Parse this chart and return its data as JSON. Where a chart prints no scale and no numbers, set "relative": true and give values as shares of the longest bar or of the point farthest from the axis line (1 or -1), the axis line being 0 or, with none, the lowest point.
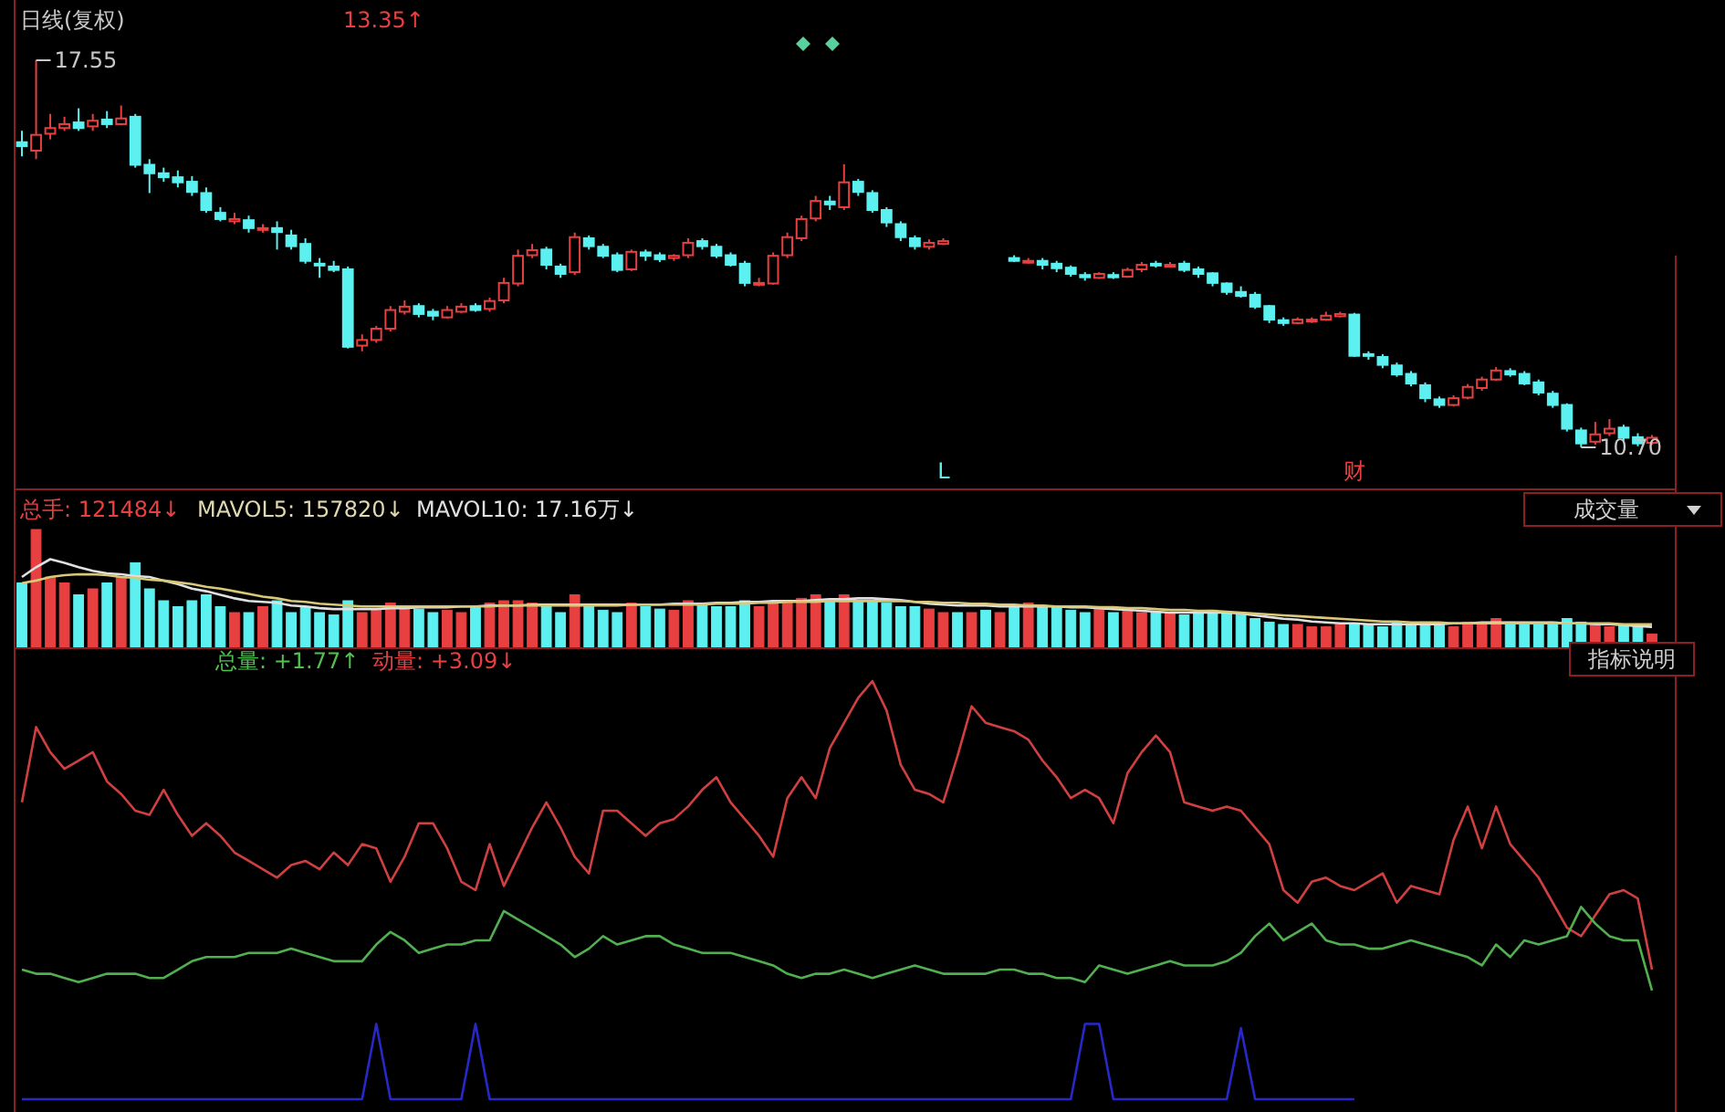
{
  "chart_data": [
    {
      "type": "candlestick",
      "categories": [
        null,
        null,
        null,
        null,
        null,
        null,
        null,
        null,
        null,
        null,
        null,
        null,
        null,
        null,
        null,
        null,
        null,
        null,
        null,
        null,
        null,
        null,
        null,
        null,
        null,
        null,
        null,
        null,
        null,
        null,
        null,
        null,
        null,
        null,
        null,
        null,
        null,
        null,
        null,
        null,
        null,
        null,
        null,
        null,
        null,
        null,
        null,
        null,
        null,
        null,
        null,
        null,
        null,
        null,
        null,
        null,
        null,
        null,
        null,
        null,
        null,
        null,
        null,
        null,
        null,
        null,
        null,
        null,
        null,
        null,
        null,
        null,
        null,
        null,
        null,
        null,
        null,
        null,
        null,
        null,
        null,
        null,
        null,
        null,
        null,
        null,
        null,
        null,
        null,
        null,
        null,
        null,
        null,
        null,
        null,
        null,
        null,
        null,
        null,
        null,
        null,
        null,
        null,
        null,
        null,
        null,
        null,
        null,
        null,
        null,
        null,
        null,
        null,
        null,
        null,
        null
      ],
      "ohlc": [
        [
          16.1,
          16.3,
          15.85,
          16.03
        ],
        [
          15.95,
          17.55,
          15.8,
          16.23
        ],
        [
          16.25,
          16.6,
          16.15,
          16.35
        ],
        [
          16.35,
          16.55,
          16.3,
          16.42
        ],
        [
          16.45,
          16.7,
          16.3,
          16.35
        ],
        [
          16.38,
          16.6,
          16.3,
          16.48
        ],
        [
          16.5,
          16.65,
          16.35,
          16.42
        ],
        [
          16.42,
          16.75,
          16.4,
          16.52
        ],
        [
          16.55,
          16.6,
          15.65,
          15.7
        ],
        [
          15.7,
          15.8,
          15.2,
          15.55
        ],
        [
          15.55,
          15.65,
          15.4,
          15.48
        ],
        [
          15.48,
          15.6,
          15.3,
          15.39
        ],
        [
          15.4,
          15.5,
          15.15,
          15.22
        ],
        [
          15.2,
          15.3,
          14.85,
          14.9
        ],
        [
          14.85,
          14.95,
          14.7,
          14.74
        ],
        [
          14.7,
          14.85,
          14.65,
          14.74
        ],
        [
          14.72,
          14.8,
          14.5,
          14.58
        ],
        [
          14.55,
          14.65,
          14.5,
          14.58
        ],
        [
          14.58,
          14.7,
          14.2,
          14.51
        ],
        [
          14.45,
          14.55,
          14.2,
          14.26
        ],
        [
          14.3,
          14.4,
          13.95,
          14.0
        ],
        [
          13.95,
          14.05,
          13.7,
          13.93
        ],
        [
          13.9,
          14.0,
          13.8,
          13.84
        ],
        [
          13.85,
          13.9,
          12.45,
          12.48
        ],
        [
          12.5,
          12.7,
          12.4,
          12.6
        ],
        [
          12.6,
          12.85,
          12.55,
          12.8
        ],
        [
          12.8,
          13.2,
          12.75,
          13.13
        ],
        [
          13.1,
          13.3,
          13.05,
          13.19
        ],
        [
          13.2,
          13.25,
          13.0,
          13.06
        ],
        [
          13.1,
          13.15,
          12.95,
          13.03
        ],
        [
          13.0,
          13.2,
          12.98,
          13.13
        ],
        [
          13.1,
          13.25,
          13.08,
          13.19
        ],
        [
          13.2,
          13.25,
          13.1,
          13.13
        ],
        [
          13.15,
          13.35,
          13.1,
          13.29
        ],
        [
          13.3,
          13.7,
          13.25,
          13.61
        ],
        [
          13.6,
          14.2,
          13.55,
          14.09
        ],
        [
          14.1,
          14.3,
          14.05,
          14.19
        ],
        [
          14.2,
          14.25,
          13.85,
          13.93
        ],
        [
          13.9,
          13.95,
          13.7,
          13.77
        ],
        [
          13.8,
          14.5,
          13.75,
          14.42
        ],
        [
          14.4,
          14.45,
          14.2,
          14.26
        ],
        [
          14.25,
          14.3,
          14.05,
          14.09
        ],
        [
          14.1,
          14.15,
          13.8,
          13.84
        ],
        [
          13.85,
          14.2,
          13.82,
          14.16
        ],
        [
          14.15,
          14.2,
          14.0,
          14.09
        ],
        [
          14.1,
          14.15,
          13.98,
          14.03
        ],
        [
          14.05,
          14.12,
          14.0,
          14.09
        ],
        [
          14.1,
          14.4,
          14.05,
          14.32
        ],
        [
          14.35,
          14.4,
          14.2,
          14.26
        ],
        [
          14.25,
          14.3,
          14.05,
          14.09
        ],
        [
          14.1,
          14.15,
          13.9,
          13.93
        ],
        [
          13.95,
          14.0,
          13.55,
          13.61
        ],
        [
          13.58,
          13.7,
          13.55,
          13.61
        ],
        [
          13.6,
          14.15,
          13.58,
          14.09
        ],
        [
          14.1,
          14.5,
          14.05,
          14.42
        ],
        [
          14.4,
          14.8,
          14.35,
          14.74
        ],
        [
          14.75,
          15.15,
          14.7,
          15.06
        ],
        [
          15.05,
          15.15,
          14.9,
          15.0
        ],
        [
          14.95,
          15.71,
          14.9,
          15.39
        ],
        [
          15.4,
          15.45,
          15.15,
          15.22
        ],
        [
          15.2,
          15.25,
          14.85,
          14.9
        ],
        [
          14.9,
          14.95,
          14.6,
          14.68
        ],
        [
          14.65,
          14.7,
          14.35,
          14.42
        ],
        [
          14.4,
          14.45,
          14.2,
          14.26
        ],
        [
          14.25,
          14.38,
          14.2,
          14.32
        ],
        [
          14.3,
          14.4,
          14.28,
          14.35
        ],
        null,
        null,
        null,
        null,
        [
          14.05,
          14.1,
          13.98,
          14.0
        ],
        [
          14.0,
          14.05,
          13.95,
          14.0
        ],
        [
          14.0,
          14.05,
          13.85,
          13.93
        ],
        [
          13.95,
          14.0,
          13.8,
          13.87
        ],
        [
          13.88,
          13.92,
          13.72,
          13.77
        ],
        [
          13.75,
          13.8,
          13.65,
          13.71
        ],
        [
          13.7,
          13.8,
          13.68,
          13.77
        ],
        [
          13.75,
          13.8,
          13.68,
          13.71
        ],
        [
          13.72,
          13.88,
          13.7,
          13.84
        ],
        [
          13.85,
          13.98,
          13.8,
          13.93
        ],
        [
          13.95,
          14.0,
          13.88,
          13.93
        ],
        [
          13.9,
          13.98,
          13.88,
          13.93
        ],
        [
          13.95,
          14.0,
          13.8,
          13.84
        ],
        [
          13.85,
          13.9,
          13.7,
          13.77
        ],
        [
          13.78,
          13.8,
          13.55,
          13.61
        ],
        [
          13.6,
          13.62,
          13.4,
          13.45
        ],
        [
          13.45,
          13.55,
          13.35,
          13.38
        ],
        [
          13.4,
          13.45,
          13.15,
          13.19
        ],
        [
          13.2,
          13.22,
          12.9,
          12.96
        ],
        [
          12.95,
          13.0,
          12.85,
          12.9
        ],
        [
          12.9,
          13.0,
          12.88,
          12.96
        ],
        [
          12.95,
          13.0,
          12.9,
          12.96
        ],
        [
          12.96,
          13.1,
          12.94,
          13.03
        ],
        [
          13.02,
          13.1,
          13.0,
          13.06
        ],
        [
          13.05,
          13.08,
          12.3,
          12.32
        ],
        [
          12.35,
          12.4,
          12.25,
          12.32
        ],
        [
          12.3,
          12.35,
          12.1,
          12.16
        ],
        [
          12.15,
          12.2,
          11.95,
          11.99
        ],
        [
          12.0,
          12.05,
          11.78,
          11.83
        ],
        [
          11.8,
          11.85,
          11.5,
          11.57
        ],
        [
          11.55,
          11.6,
          11.4,
          11.45
        ],
        [
          11.45,
          11.62,
          11.43,
          11.57
        ],
        [
          11.58,
          11.82,
          11.55,
          11.77
        ],
        [
          11.75,
          11.95,
          11.7,
          11.9
        ],
        [
          11.9,
          12.12,
          11.88,
          12.06
        ],
        [
          12.05,
          12.1,
          11.95,
          11.99
        ],
        [
          12.0,
          12.05,
          11.8,
          11.83
        ],
        [
          11.85,
          11.9,
          11.62,
          11.67
        ],
        [
          11.65,
          11.7,
          11.4,
          11.45
        ],
        [
          11.45,
          11.48,
          10.98,
          11.03
        ],
        [
          11.0,
          11.05,
          10.7,
          10.77
        ],
        [
          10.8,
          11.15,
          10.75,
          10.93
        ],
        [
          10.95,
          11.2,
          10.9,
          11.03
        ],
        [
          11.05,
          11.1,
          10.82,
          10.87
        ],
        [
          10.88,
          10.95,
          10.72,
          10.77
        ],
        [
          10.78,
          10.92,
          10.75,
          10.87
        ]
      ],
      "annotations": [
        "日线(复权)",
        "13.35↑",
        "17.55",
        "10.70",
        "L",
        "财"
      ]
    },
    {
      "type": "bar",
      "relative": true,
      "categories": [
        null,
        null,
        null,
        null,
        null,
        null,
        null,
        null,
        null,
        null,
        null,
        null,
        null,
        null,
        null,
        null,
        null,
        null,
        null,
        null,
        null,
        null,
        null,
        null,
        null,
        null,
        null,
        null,
        null,
        null,
        null,
        null,
        null,
        null,
        null,
        null,
        null,
        null,
        null,
        null,
        null,
        null,
        null,
        null,
        null,
        null,
        null,
        null,
        null,
        null,
        null,
        null,
        null,
        null,
        null,
        null,
        null,
        null,
        null,
        null,
        null,
        null,
        null,
        null,
        null,
        null,
        null,
        null,
        null,
        null,
        null,
        null,
        null,
        null,
        null,
        null,
        null,
        null,
        null,
        null,
        null,
        null,
        null,
        null,
        null,
        null,
        null,
        null,
        null,
        null,
        null,
        null,
        null,
        null,
        null,
        null,
        null,
        null,
        null,
        null,
        null,
        null,
        null,
        null,
        null,
        null,
        null,
        null,
        null,
        null,
        null,
        null,
        null,
        null,
        null,
        null
      ],
      "values": [
        0.55,
        1,
        0.6,
        0.55,
        0.45,
        0.5,
        0.55,
        0.6,
        0.72,
        0.5,
        0.4,
        0.35,
        0.4,
        0.45,
        0.35,
        0.3,
        0.3,
        0.35,
        0.4,
        0.3,
        0.35,
        0.3,
        0.28,
        0.4,
        0.3,
        0.32,
        0.38,
        0.35,
        0.33,
        0.3,
        0.32,
        0.3,
        0.35,
        0.38,
        0.4,
        0.4,
        0.38,
        0.35,
        0.3,
        0.45,
        0.35,
        0.32,
        0.3,
        0.38,
        0.35,
        0.33,
        0.32,
        0.4,
        0.38,
        0.35,
        0.35,
        0.4,
        0.35,
        0.38,
        0.4,
        0.42,
        0.45,
        0.4,
        0.45,
        0.4,
        0.4,
        0.38,
        0.35,
        0.35,
        0.33,
        0.3,
        0.3,
        0.3,
        0.32,
        0.3,
        0.35,
        0.38,
        0.36,
        0.35,
        0.32,
        0.3,
        0.33,
        0.3,
        0.32,
        0.3,
        0.3,
        0.3,
        0.28,
        0.3,
        0.32,
        0.3,
        0.28,
        0.25,
        0.22,
        0.2,
        0.2,
        0.18,
        0.18,
        0.2,
        0.2,
        0.2,
        0.18,
        0.22,
        0.2,
        0.22,
        0.2,
        0.18,
        0.22,
        0.2,
        0.25,
        0.22,
        0.2,
        0.2,
        0.22,
        0.25,
        0.22,
        0.2,
        0.18,
        0.2,
        0.18,
        0.12
      ],
      "colors": [
        "#5cf0f0",
        "#e84040",
        "#e84040",
        "#e84040",
        "#5cf0f0",
        "#e84040",
        "#5cf0f0",
        "#e84040",
        "#5cf0f0",
        "#5cf0f0",
        "#5cf0f0",
        "#5cf0f0",
        "#5cf0f0",
        "#5cf0f0",
        "#5cf0f0",
        "#e84040",
        "#5cf0f0",
        "#e84040",
        "#5cf0f0",
        "#5cf0f0",
        "#5cf0f0",
        "#5cf0f0",
        "#5cf0f0",
        "#5cf0f0",
        "#e84040",
        "#e84040",
        "#e84040",
        "#e84040",
        "#5cf0f0",
        "#5cf0f0",
        "#e84040",
        "#e84040",
        "#5cf0f0",
        "#e84040",
        "#e84040",
        "#e84040",
        "#e84040",
        "#5cf0f0",
        "#5cf0f0",
        "#e84040",
        "#5cf0f0",
        "#5cf0f0",
        "#5cf0f0",
        "#e84040",
        "#5cf0f0",
        "#5cf0f0",
        "#e84040",
        "#e84040",
        "#5cf0f0",
        "#5cf0f0",
        "#5cf0f0",
        "#5cf0f0",
        "#e84040",
        "#e84040",
        "#e84040",
        "#e84040",
        "#e84040",
        "#5cf0f0",
        "#e84040",
        "#5cf0f0",
        "#5cf0f0",
        "#5cf0f0",
        "#5cf0f0",
        "#5cf0f0",
        "#e84040",
        "#e84040",
        "#5cf0f0",
        "#e84040",
        "#5cf0f0",
        "#e84040",
        "#5cf0f0",
        "#e84040",
        "#5cf0f0",
        "#5cf0f0",
        "#5cf0f0",
        "#5cf0f0",
        "#e84040",
        "#5cf0f0",
        "#e84040",
        "#e84040",
        "#5cf0f0",
        "#e84040",
        "#5cf0f0",
        "#5cf0f0",
        "#5cf0f0",
        "#5cf0f0",
        "#5cf0f0",
        "#5cf0f0",
        "#5cf0f0",
        "#5cf0f0",
        "#e84040",
        "#e84040",
        "#e84040",
        "#e84040",
        "#5cf0f0",
        "#5cf0f0",
        "#5cf0f0",
        "#5cf0f0",
        "#5cf0f0",
        "#5cf0f0",
        "#5cf0f0",
        "#e84040",
        "#e84040",
        "#e84040",
        "#e84040",
        "#5cf0f0",
        "#5cf0f0",
        "#5cf0f0",
        "#5cf0f0",
        "#5cf0f0",
        "#5cf0f0",
        "#e84040",
        "#e84040",
        "#5cf0f0",
        "#5cf0f0",
        "#e84040"
      ],
      "annotations": [
        "总手: 121484↓",
        "MAVOL5: 157820↓",
        "MAVOL10: 17.16万↓",
        "成交量"
      ]
    },
    {
      "type": "line",
      "relative": true,
      "categories": [
        null,
        null,
        null,
        null,
        null,
        null,
        null,
        null,
        null,
        null,
        null,
        null,
        null,
        null,
        null,
        null,
        null,
        null,
        null,
        null,
        null,
        null,
        null,
        null,
        null,
        null,
        null,
        null,
        null,
        null,
        null,
        null,
        null,
        null,
        null,
        null,
        null,
        null,
        null,
        null,
        null,
        null,
        null,
        null,
        null,
        null,
        null,
        null,
        null,
        null,
        null,
        null,
        null,
        null,
        null,
        null,
        null,
        null,
        null,
        null,
        null,
        null,
        null,
        null,
        null,
        null,
        null,
        null,
        null,
        null,
        null,
        null,
        null,
        null,
        null,
        null,
        null,
        null,
        null,
        null,
        null,
        null,
        null,
        null,
        null,
        null,
        null,
        null,
        null,
        null,
        null,
        null,
        null,
        null,
        null,
        null,
        null,
        null,
        null,
        null,
        null,
        null,
        null,
        null,
        null,
        null,
        null,
        null,
        null,
        null,
        null,
        null,
        null,
        null,
        null,
        null
      ],
      "series": [
        {
          "color": "#e0e0e0",
          "values": [
            0.8,
            0.91,
            1,
            0.96,
            0.91,
            0.87,
            0.84,
            0.83,
            0.81,
            0.8,
            0.76,
            0.72,
            0.67,
            0.64,
            0.6,
            0.56,
            0.53,
            0.52,
            0.51,
            0.48,
            0.47,
            0.45,
            0.44,
            0.44,
            0.44,
            0.44,
            0.45,
            0.45,
            0.46,
            0.46,
            0.46,
            0.47,
            0.47,
            0.48,
            0.48,
            0.48,
            0.49,
            0.49,
            0.49,
            0.49,
            0.49,
            0.49,
            0.49,
            0.49,
            0.49,
            0.49,
            0.5,
            0.5,
            0.5,
            0.51,
            0.51,
            0.52,
            0.52,
            0.53,
            0.53,
            0.53,
            0.54,
            0.55,
            0.55,
            0.56,
            0.56,
            0.55,
            0.54,
            0.52,
            0.5,
            0.49,
            0.48,
            0.48,
            0.48,
            0.47,
            0.47,
            0.47,
            0.47,
            0.47,
            0.46,
            0.46,
            0.45,
            0.44,
            0.43,
            0.42,
            0.41,
            0.4,
            0.4,
            0.4,
            0.4,
            0.4,
            0.39,
            0.37,
            0.35,
            0.33,
            0.32,
            0.3,
            0.29,
            0.28,
            0.28,
            0.27,
            0.27,
            0.27,
            0.27,
            0.27,
            0.27,
            0.28,
            0.28,
            0.29,
            0.29,
            0.29,
            0.29,
            0.29,
            0.29,
            0.28,
            0.28,
            0.27,
            0.27,
            0.26,
            0.25,
            0.24
          ]
        },
        {
          "color": "#d8c878",
          "values": [
            0.73,
            0.76,
            0.8,
            0.82,
            0.83,
            0.83,
            0.82,
            0.8,
            0.79,
            0.77,
            0.76,
            0.74,
            0.72,
            0.69,
            0.67,
            0.64,
            0.61,
            0.58,
            0.56,
            0.53,
            0.52,
            0.5,
            0.49,
            0.48,
            0.47,
            0.47,
            0.47,
            0.47,
            0.47,
            0.47,
            0.47,
            0.47,
            0.47,
            0.47,
            0.48,
            0.48,
            0.48,
            0.48,
            0.48,
            0.48,
            0.48,
            0.48,
            0.48,
            0.49,
            0.49,
            0.49,
            0.49,
            0.49,
            0.49,
            0.5,
            0.5,
            0.5,
            0.51,
            0.51,
            0.52,
            0.52,
            0.52,
            0.53,
            0.53,
            0.53,
            0.53,
            0.53,
            0.53,
            0.52,
            0.52,
            0.51,
            0.51,
            0.5,
            0.5,
            0.49,
            0.49,
            0.48,
            0.48,
            0.47,
            0.47,
            0.47,
            0.46,
            0.46,
            0.45,
            0.45,
            0.44,
            0.43,
            0.43,
            0.42,
            0.42,
            0.41,
            0.4,
            0.39,
            0.38,
            0.37,
            0.36,
            0.35,
            0.34,
            0.33,
            0.32,
            0.31,
            0.3,
            0.3,
            0.29,
            0.29,
            0.29,
            0.28,
            0.28,
            0.28,
            0.28,
            0.28,
            0.28,
            0.28,
            0.28,
            0.28,
            0.28,
            0.28,
            0.28,
            0.27,
            0.27,
            0.27
          ]
        }
      ]
    },
    {
      "type": "line",
      "relative": true,
      "categories": [
        null,
        null,
        null,
        null,
        null,
        null,
        null,
        null,
        null,
        null,
        null,
        null,
        null,
        null,
        null,
        null,
        null,
        null,
        null,
        null,
        null,
        null,
        null,
        null,
        null,
        null,
        null,
        null,
        null,
        null,
        null,
        null,
        null,
        null,
        null,
        null,
        null,
        null,
        null,
        null,
        null,
        null,
        null,
        null,
        null,
        null,
        null,
        null,
        null,
        null,
        null,
        null,
        null,
        null,
        null,
        null,
        null,
        null,
        null,
        null,
        null,
        null,
        null,
        null,
        null,
        null,
        null,
        null,
        null,
        null,
        null,
        null,
        null,
        null,
        null,
        null,
        null,
        null,
        null,
        null,
        null,
        null,
        null,
        null,
        null,
        null,
        null,
        null,
        null,
        null,
        null,
        null,
        null,
        null,
        null,
        null,
        null,
        null,
        null,
        null,
        null,
        null,
        null,
        null,
        null,
        null,
        null,
        null,
        null,
        null,
        null,
        null,
        null,
        null,
        null,
        null
      ],
      "series": [
        {
          "color": "#d04040",
          "values": [
            0.71,
            0.89,
            0.83,
            0.79,
            0.81,
            0.83,
            0.76,
            0.73,
            0.69,
            0.68,
            0.74,
            0.68,
            0.63,
            0.66,
            0.63,
            0.59,
            0.57,
            0.55,
            0.53,
            0.56,
            0.57,
            0.55,
            0.59,
            0.56,
            0.61,
            0.6,
            0.52,
            0.58,
            0.66,
            0.66,
            0.6,
            0.52,
            0.5,
            0.61,
            0.51,
            0.58,
            0.65,
            0.71,
            0.65,
            0.58,
            0.54,
            0.69,
            0.69,
            0.66,
            0.63,
            0.66,
            0.67,
            0.7,
            0.74,
            0.77,
            0.71,
            0.67,
            0.63,
            0.58,
            0.72,
            0.77,
            0.72,
            0.84,
            0.9,
            0.96,
            1,
            0.93,
            0.8,
            0.74,
            0.73,
            0.71,
            0.82,
            0.94,
            0.9,
            0.89,
            0.88,
            0.86,
            0.81,
            0.77,
            0.72,
            0.74,
            0.72,
            0.66,
            0.78,
            0.83,
            0.87,
            0.83,
            0.71,
            0.7,
            0.69,
            0.7,
            0.69,
            0.65,
            0.61,
            0.5,
            0.47,
            0.52,
            0.53,
            0.51,
            0.5,
            0.52,
            0.54,
            0.47,
            0.51,
            0.5,
            0.49,
            0.62,
            0.7,
            0.6,
            0.7,
            0.61,
            0.57,
            0.53,
            0.47,
            0.41,
            0.39,
            0.44,
            0.49,
            0.5,
            0.48,
            0.31
          ]
        },
        {
          "color": "#50b050",
          "values": [
            0.31,
            0.3,
            0.3,
            0.29,
            0.28,
            0.29,
            0.3,
            0.3,
            0.3,
            0.29,
            0.29,
            0.31,
            0.33,
            0.34,
            0.34,
            0.34,
            0.35,
            0.35,
            0.35,
            0.36,
            0.35,
            0.34,
            0.33,
            0.33,
            0.33,
            0.37,
            0.4,
            0.38,
            0.35,
            0.36,
            0.37,
            0.37,
            0.38,
            0.38,
            0.45,
            0.43,
            0.41,
            0.39,
            0.37,
            0.34,
            0.36,
            0.39,
            0.37,
            0.38,
            0.39,
            0.39,
            0.37,
            0.36,
            0.35,
            0.35,
            0.35,
            0.34,
            0.33,
            0.32,
            0.3,
            0.29,
            0.3,
            0.3,
            0.31,
            0.3,
            0.29,
            0.3,
            0.31,
            0.32,
            0.31,
            0.3,
            0.3,
            0.3,
            0.3,
            0.31,
            0.31,
            0.3,
            0.3,
            0.29,
            0.29,
            0.28,
            0.32,
            0.31,
            0.3,
            0.31,
            0.32,
            0.33,
            0.32,
            0.32,
            0.32,
            0.33,
            0.35,
            0.39,
            0.42,
            0.38,
            0.4,
            0.42,
            0.38,
            0.37,
            0.37,
            0.36,
            0.36,
            0.37,
            0.38,
            0.37,
            0.36,
            0.35,
            0.34,
            0.32,
            0.37,
            0.34,
            0.38,
            0.37,
            0.38,
            0.39,
            0.46,
            0.42,
            0.39,
            0.38,
            0.38,
            0.26
          ]
        },
        {
          "color": "#2828c8",
          "values": [
            0,
            0,
            0,
            0,
            0,
            0,
            0,
            0,
            0,
            0,
            0,
            0,
            0,
            0,
            0,
            0,
            0,
            0,
            0,
            0,
            0,
            0,
            0,
            0,
            0,
            0.18,
            0,
            0,
            0,
            0,
            0,
            0,
            0.18,
            0,
            0,
            0,
            0,
            0,
            0,
            0,
            0,
            0,
            0,
            0,
            0,
            0,
            0,
            0,
            0,
            0,
            0,
            0,
            0,
            0,
            0,
            0,
            0,
            0,
            0,
            0,
            0,
            0,
            0,
            0,
            0,
            0,
            0,
            0,
            0,
            0,
            0,
            0,
            0,
            0,
            0,
            0.18,
            0.18,
            0,
            0,
            0,
            0,
            0,
            0,
            0,
            0,
            0,
            0.17,
            0,
            0,
            0,
            0,
            0,
            0,
            0,
            0,
            null,
            null,
            null,
            null,
            null,
            null,
            null,
            null,
            null,
            null,
            null,
            null,
            null,
            null,
            null,
            null,
            null,
            null,
            null,
            null,
            null
          ]
        }
      ],
      "annotations": [
        "总量: +1.77↑",
        "动量: +3.09↓",
        "指标说明"
      ]
    }
  ]
}
